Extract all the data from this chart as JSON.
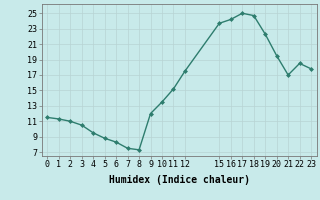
{
  "x": [
    0,
    1,
    2,
    3,
    4,
    5,
    6,
    7,
    8,
    9,
    10,
    11,
    12,
    15,
    16,
    17,
    18,
    19,
    20,
    21,
    22,
    23
  ],
  "y": [
    11.5,
    11.3,
    11.0,
    10.5,
    9.5,
    8.8,
    8.3,
    7.5,
    7.3,
    12.0,
    13.5,
    15.2,
    17.5,
    23.7,
    24.2,
    25.0,
    24.7,
    22.3,
    19.5,
    17.0,
    18.5,
    17.8
  ],
  "line_color": "#2e7d6e",
  "marker": "D",
  "marker_size": 2.0,
  "line_width": 1.0,
  "bg_color": "#c8eaea",
  "grid_color": "#b8d4d4",
  "xlabel": "Humidex (Indice chaleur)",
  "xlabel_fontsize": 7,
  "xticks": [
    0,
    1,
    2,
    3,
    4,
    5,
    6,
    7,
    8,
    9,
    10,
    11,
    12,
    15,
    16,
    17,
    18,
    19,
    20,
    21,
    22,
    23
  ],
  "xlim": [
    -0.5,
    23.5
  ],
  "ylim": [
    6.5,
    26.2
  ],
  "yticks": [
    7,
    9,
    11,
    13,
    15,
    17,
    19,
    21,
    23,
    25
  ],
  "tick_fontsize": 6
}
